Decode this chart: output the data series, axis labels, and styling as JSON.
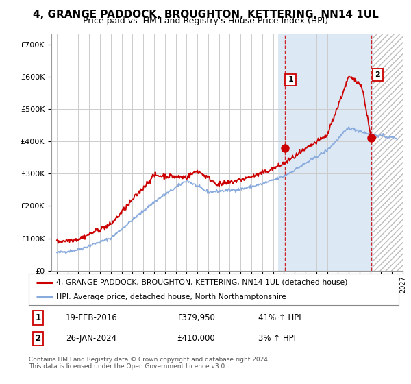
{
  "title": "4, GRANGE PADDOCK, BROUGHTON, KETTERING, NN14 1UL",
  "subtitle": "Price paid vs. HM Land Registry's House Price Index (HPI)",
  "ytick_labels": [
    "£0",
    "£100K",
    "£200K",
    "£300K",
    "£400K",
    "£500K",
    "£600K",
    "£700K"
  ],
  "yticks": [
    0,
    100000,
    200000,
    300000,
    400000,
    500000,
    600000,
    700000
  ],
  "ylim": [
    0,
    730000
  ],
  "xlim_min": 1994.5,
  "xlim_max": 2027.0,
  "legend_entries": [
    "4, GRANGE PADDOCK, BROUGHTON, KETTERING, NN14 1UL (detached house)",
    "HPI: Average price, detached house, North Northamptonshire"
  ],
  "legend_colors": [
    "#cc0000",
    "#88aadd"
  ],
  "annotation1": {
    "label": "1",
    "date": "19-FEB-2016",
    "price": "£379,950",
    "change": "41% ↑ HPI"
  },
  "annotation2": {
    "label": "2",
    "date": "26-JAN-2024",
    "price": "£410,000",
    "change": "3% ↑ HPI"
  },
  "footnote": "Contains HM Land Registry data © Crown copyright and database right 2024.\nThis data is licensed under the Open Government Licence v3.0.",
  "hpi_line_color": "#88aadd",
  "price_line_color": "#cc0000",
  "vline_color": "#cc0000",
  "plot_bg_color": "#ffffff",
  "highlight_bg_color": "#dde8f5",
  "grid_color": "#cccccc",
  "title_fontsize": 11,
  "subtitle_fontsize": 9,
  "sale1_x": 2016.12,
  "sale1_y": 379950,
  "sale2_x": 2024.08,
  "sale2_y": 410000,
  "highlight_start": 2015.5,
  "hatch_start": 2024.25
}
